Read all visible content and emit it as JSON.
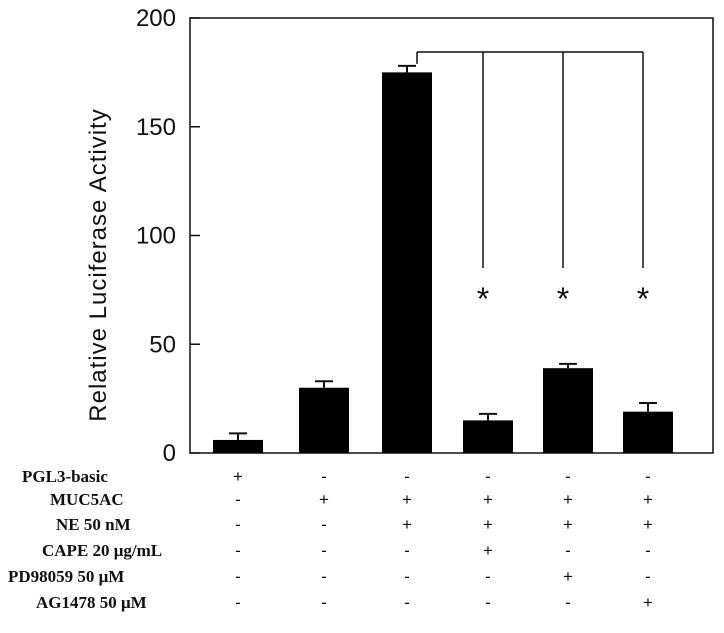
{
  "chart_data": {
    "type": "bar",
    "ylabel": "Relative Luciferase Activity",
    "ylim": [
      0,
      200
    ],
    "yticks": [
      0,
      50,
      100,
      150,
      200
    ],
    "values": [
      6,
      30,
      175,
      15,
      39,
      19
    ],
    "errors": [
      3,
      3,
      3,
      3,
      2,
      4
    ],
    "bar_color": "#000000",
    "significance": {
      "reference_bar": 2,
      "compared_bars": [
        3,
        4,
        5
      ],
      "marker": "*"
    },
    "conditions": [
      {
        "label": "PGL3-basic",
        "cells": [
          "+",
          "-",
          "-",
          "-",
          "-",
          "-"
        ]
      },
      {
        "label": "MUC5AC",
        "cells": [
          "-",
          "+",
          "+",
          "+",
          "+",
          "+"
        ]
      },
      {
        "label": "NE 50 nM",
        "cells": [
          "-",
          "-",
          "+",
          "+",
          "+",
          "+"
        ]
      },
      {
        "label": "CAPE 20  μg/mL",
        "cells": [
          "-",
          "-",
          "-",
          "+",
          "-",
          "-"
        ]
      },
      {
        "label": "PD98059 50 μM",
        "cells": [
          "-",
          "-",
          "-",
          "-",
          "+",
          "-"
        ]
      },
      {
        "label": "AG1478 50  μM",
        "cells": [
          "-",
          "-",
          "-",
          "-",
          "-",
          "+"
        ]
      }
    ]
  }
}
